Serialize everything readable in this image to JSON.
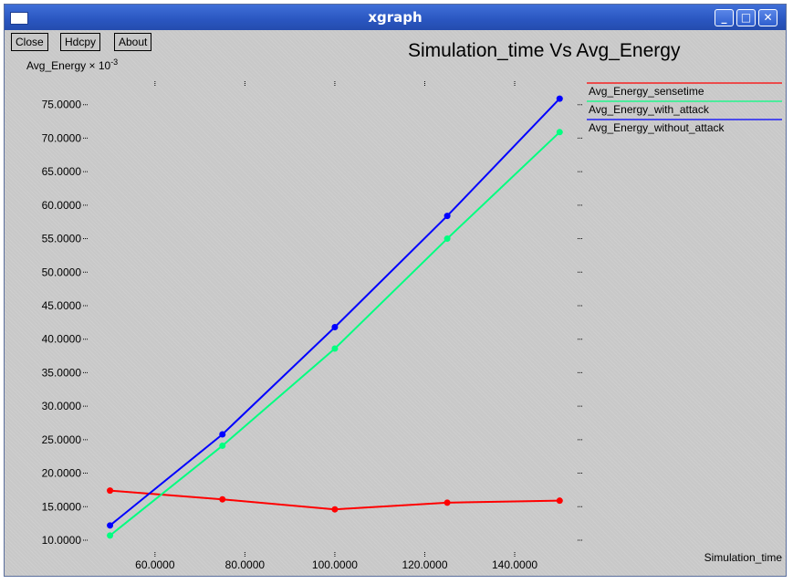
{
  "window": {
    "title": "xgraph",
    "controls": {
      "minimize": "_",
      "maximize": "□",
      "close": "✕"
    }
  },
  "toolbar": {
    "close_label": "Close",
    "hdcpy_label": "Hdcpy",
    "about_label": "About"
  },
  "chart_data": {
    "type": "line",
    "title": "Simulation_time Vs Avg_Energy",
    "xlabel": "Simulation_time",
    "ylabel": "Avg_Energy × 10",
    "ylabel_exponent": "-3",
    "xlim": [
      44,
      154
    ],
    "ylim": [
      8.5,
      78.5
    ],
    "x_ticks": [
      60,
      80,
      100,
      120,
      140
    ],
    "x_tick_labels": [
      "60.0000",
      "80.0000",
      "100.0000",
      "120.0000",
      "140.0000"
    ],
    "y_ticks": [
      10,
      15,
      20,
      25,
      30,
      35,
      40,
      45,
      50,
      55,
      60,
      65,
      70,
      75
    ],
    "y_tick_labels": [
      "10.0000",
      "15.0000",
      "20.0000",
      "25.0000",
      "30.0000",
      "35.0000",
      "40.0000",
      "45.0000",
      "50.0000",
      "55.0000",
      "60.0000",
      "65.0000",
      "70.0000",
      "75.0000"
    ],
    "x": [
      50,
      75,
      100,
      125,
      150
    ],
    "series": [
      {
        "name": "Avg_Energy_sensetime",
        "color": "#ff0000",
        "values": [
          17.4,
          16.1,
          14.6,
          15.6,
          15.9
        ]
      },
      {
        "name": "Avg_Energy_with_attack",
        "color": "#00ff80",
        "values": [
          10.7,
          24.1,
          38.6,
          55.0,
          70.9
        ]
      },
      {
        "name": "Avg_Energy_without_attack",
        "color": "#0000ff",
        "values": [
          12.2,
          25.8,
          41.8,
          58.4,
          75.9
        ]
      }
    ],
    "legend_position": "top-right",
    "grid": false
  }
}
